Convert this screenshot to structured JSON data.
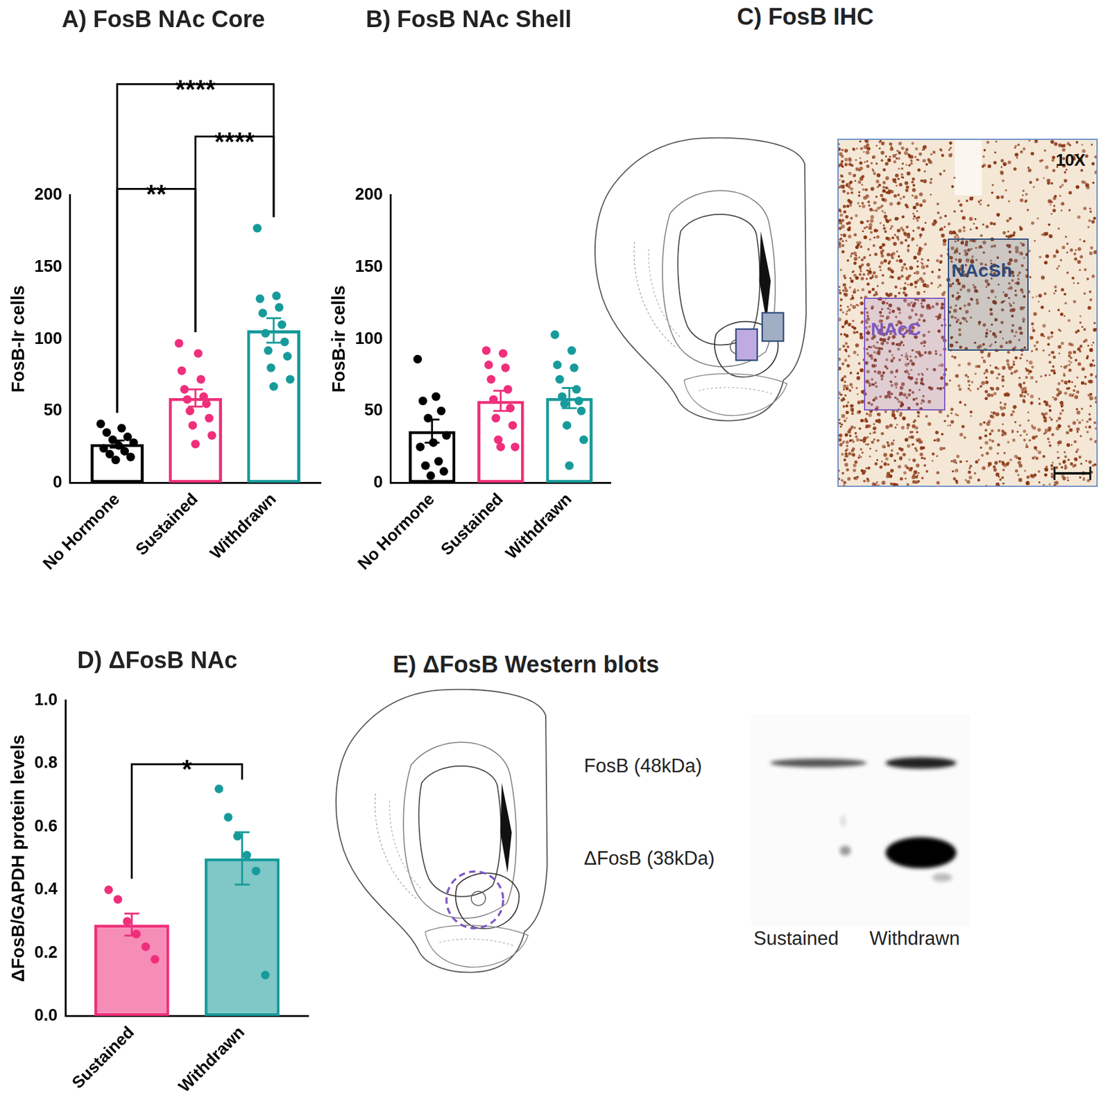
{
  "chart_data": [
    {
      "type": "bar",
      "title": "A) FosB NAc Core",
      "categories": [
        "No Hormone",
        "Sustained",
        "Withdrawn"
      ],
      "values": [
        27,
        59,
        106
      ],
      "error": [
        2.5,
        6,
        8.5
      ],
      "points": [
        [
          41,
          38,
          35,
          32,
          30,
          28,
          26,
          24,
          22,
          20,
          18,
          16
        ],
        [
          97,
          90,
          78,
          72,
          65,
          60,
          58,
          55,
          50,
          45,
          40,
          33,
          27
        ],
        [
          177,
          130,
          128,
          122,
          118,
          110,
          104,
          98,
          92,
          88,
          80,
          72,
          67
        ]
      ],
      "colors": [
        "#000000",
        "#ef2f7b",
        "#179b9a"
      ],
      "ylabel": "FosB-Ir cells",
      "ylim": [
        0,
        200
      ],
      "yticks": [
        0,
        50,
        100,
        150,
        200
      ],
      "grid": false,
      "annotations": [
        {
          "from": 0,
          "to": 1,
          "label": "**"
        },
        {
          "from": 1,
          "to": 2,
          "label": "****"
        },
        {
          "from": 0,
          "to": 2,
          "label": "****"
        }
      ]
    },
    {
      "type": "bar",
      "title": "B) FosB NAc Shell",
      "categories": [
        "No Hormone",
        "Sustained",
        "Withdrawn"
      ],
      "values": [
        36,
        57,
        59
      ],
      "error": [
        8,
        7,
        7
      ],
      "points": [
        [
          86,
          60,
          57,
          50,
          45,
          33,
          28,
          25,
          15,
          12,
          8,
          5
        ],
        [
          92,
          90,
          82,
          80,
          72,
          65,
          58,
          52,
          45,
          40,
          30,
          25,
          25
        ],
        [
          103,
          92,
          82,
          80,
          72,
          65,
          60,
          57,
          55,
          50,
          40,
          30,
          12
        ]
      ],
      "colors": [
        "#000000",
        "#ef2f7b",
        "#179b9a"
      ],
      "ylabel": "FosB-ir cells",
      "ylim": [
        0,
        200
      ],
      "yticks": [
        0,
        50,
        100,
        150,
        200
      ],
      "grid": false,
      "annotations": []
    },
    {
      "type": "bar",
      "title": "D) ΔFosB NAc",
      "categories": [
        "Sustained",
        "Withdrawn"
      ],
      "values": [
        0.29,
        0.5
      ],
      "error": [
        0.035,
        0.083
      ],
      "points": [
        [
          0.4,
          0.37,
          0.3,
          0.26,
          0.22,
          0.18
        ],
        [
          0.72,
          0.63,
          0.57,
          0.51,
          0.46,
          0.13
        ]
      ],
      "colors": [
        "#ef2f7b",
        "#179b9a"
      ],
      "ylabel": "ΔFosB/GAPDH protein levels",
      "ylim": [
        0,
        1
      ],
      "yticks": [
        {
          "value": 0,
          "label": "0.0"
        },
        0.2,
        0.4,
        0.6,
        0.8,
        {
          "value": 1,
          "label": "1.0"
        }
      ],
      "grid": false,
      "annotations": [
        {
          "from": 0,
          "to": 1,
          "label": "*"
        }
      ]
    }
  ],
  "panel_c": {
    "title": "C) FosB IHC",
    "magnification": "10X",
    "regions": [
      {
        "label": "NAcC",
        "color": "#7e57c2"
      },
      {
        "label": "NAcSh",
        "color": "#2d4a7a"
      }
    ]
  },
  "panel_e": {
    "title": "E) ΔFosB Western blots",
    "bands": [
      "FosB (48kDa)",
      "ΔFosB (38kDa)"
    ],
    "lanes": [
      "Sustained",
      "Withdrawn"
    ]
  }
}
